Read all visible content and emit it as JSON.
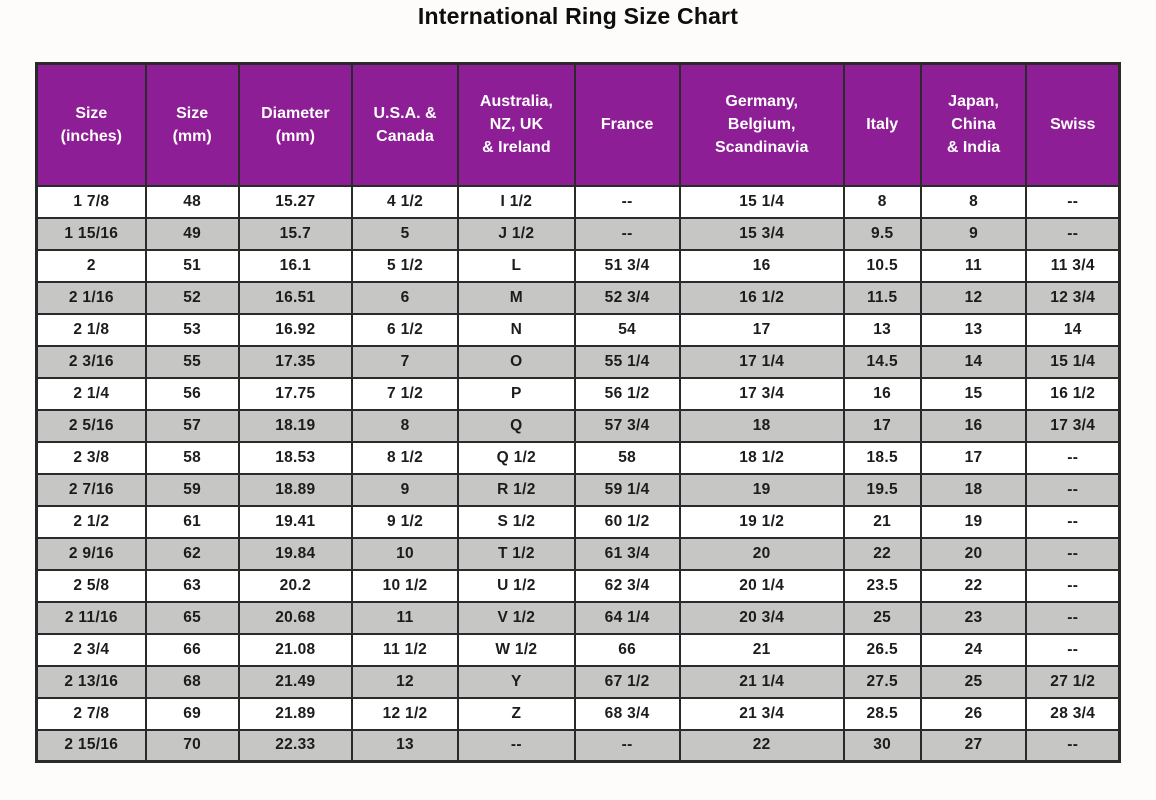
{
  "title": "International Ring Size Chart",
  "colors": {
    "header_bg": "#8e1e96",
    "header_text": "#ffffff",
    "row_bg": "#ffffff",
    "row_alt_bg": "#c6c6c4",
    "border": "#2a2a2a",
    "title_text": "#0d0d0d",
    "page_bg": "#fdfcfa"
  },
  "chart_data": {
    "type": "table",
    "title": "International Ring Size Chart",
    "columns": [
      "Size\n(inches)",
      "Size\n(mm)",
      "Diameter\n(mm)",
      "U.S.A. &\nCanada",
      "Australia,\nNZ, UK\n& Ireland",
      "France",
      "Germany,\nBelgium,\nScandinavia",
      "Italy",
      "Japan,\nChina\n& India",
      "Swiss"
    ],
    "rows": [
      [
        "1 7/8",
        "48",
        "15.27",
        "4 1/2",
        "I 1/2",
        "--",
        "15 1/4",
        "8",
        "8",
        "--"
      ],
      [
        "1 15/16",
        "49",
        "15.7",
        "5",
        "J 1/2",
        "--",
        "15 3/4",
        "9.5",
        "9",
        "--"
      ],
      [
        "2",
        "51",
        "16.1",
        "5 1/2",
        "L",
        "51 3/4",
        "16",
        "10.5",
        "11",
        "11 3/4"
      ],
      [
        "2 1/16",
        "52",
        "16.51",
        "6",
        "M",
        "52 3/4",
        "16 1/2",
        "11.5",
        "12",
        "12 3/4"
      ],
      [
        "2 1/8",
        "53",
        "16.92",
        "6 1/2",
        "N",
        "54",
        "17",
        "13",
        "13",
        "14"
      ],
      [
        "2 3/16",
        "55",
        "17.35",
        "7",
        "O",
        "55 1/4",
        "17 1/4",
        "14.5",
        "14",
        "15 1/4"
      ],
      [
        "2 1/4",
        "56",
        "17.75",
        "7 1/2",
        "P",
        "56 1/2",
        "17 3/4",
        "16",
        "15",
        "16 1/2"
      ],
      [
        "2 5/16",
        "57",
        "18.19",
        "8",
        "Q",
        "57 3/4",
        "18",
        "17",
        "16",
        "17 3/4"
      ],
      [
        "2 3/8",
        "58",
        "18.53",
        "8 1/2",
        "Q 1/2",
        "58",
        "18 1/2",
        "18.5",
        "17",
        "--"
      ],
      [
        "2 7/16",
        "59",
        "18.89",
        "9",
        "R 1/2",
        "59 1/4",
        "19",
        "19.5",
        "18",
        "--"
      ],
      [
        "2 1/2",
        "61",
        "19.41",
        "9 1/2",
        "S 1/2",
        "60 1/2",
        "19 1/2",
        "21",
        "19",
        "--"
      ],
      [
        "2 9/16",
        "62",
        "19.84",
        "10",
        "T 1/2",
        "61 3/4",
        "20",
        "22",
        "20",
        "--"
      ],
      [
        "2 5/8",
        "63",
        "20.2",
        "10 1/2",
        "U 1/2",
        "62 3/4",
        "20 1/4",
        "23.5",
        "22",
        "--"
      ],
      [
        "2 11/16",
        "65",
        "20.68",
        "11",
        "V 1/2",
        "64 1/4",
        "20 3/4",
        "25",
        "23",
        "--"
      ],
      [
        "2 3/4",
        "66",
        "21.08",
        "11 1/2",
        "W 1/2",
        "66",
        "21",
        "26.5",
        "24",
        "--"
      ],
      [
        "2 13/16",
        "68",
        "21.49",
        "12",
        "Y",
        "67 1/2",
        "21 1/4",
        "27.5",
        "25",
        "27 1/2"
      ],
      [
        "2 7/8",
        "69",
        "21.89",
        "12 1/2",
        "Z",
        "68 3/4",
        "21 3/4",
        "28.5",
        "26",
        "28 3/4"
      ],
      [
        "2 15/16",
        "70",
        "22.33",
        "13",
        "--",
        "--",
        "22",
        "30",
        "27",
        "--"
      ]
    ],
    "layout": {
      "header_style": "purple background, white bold text",
      "row_striping": "white / light gray alternating, starting white",
      "grid": true
    }
  }
}
